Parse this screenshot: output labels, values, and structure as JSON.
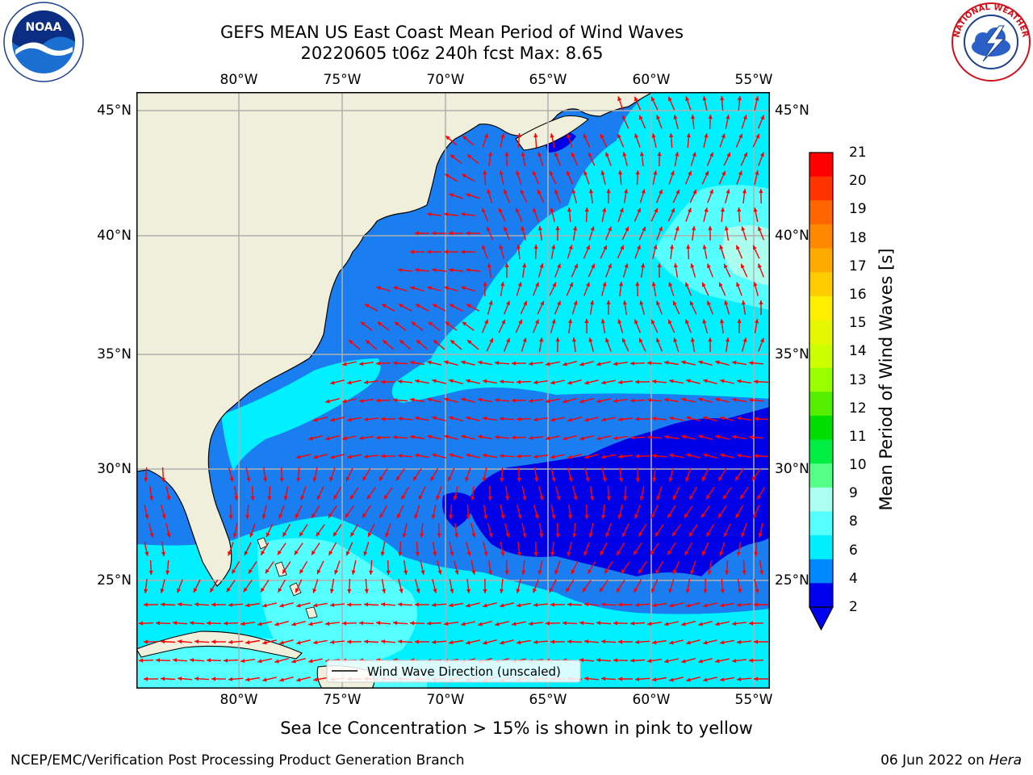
{
  "title_line1": "GEFS MEAN US East Coast Mean Period of Wind Waves",
  "title_line2": "20220605 t06z 240h fcst   Max: 8.65",
  "lon_labels": [
    "80°W",
    "75°W",
    "70°W",
    "65°W",
    "60°W",
    "55°W"
  ],
  "lat_labels": [
    "45°N",
    "40°N",
    "35°N",
    "30°N",
    "25°N"
  ],
  "legend_label": "Wind Wave Direction (unscaled)",
  "colorbar": {
    "label": "Mean Period of Wind Waves [s]",
    "ticks": [
      "21",
      "20",
      "19",
      "18",
      "17",
      "16",
      "15",
      "14",
      "13",
      "12",
      "11",
      "10",
      "9",
      "8",
      "6",
      "4",
      "2"
    ],
    "colors": [
      "#ff0000",
      "#ff3300",
      "#ff6600",
      "#ff8800",
      "#ffaa00",
      "#ffcc00",
      "#ffee00",
      "#e6f500",
      "#ccff00",
      "#99ff00",
      "#55ee00",
      "#00dd00",
      "#00ee44",
      "#55ff88",
      "#aaffee",
      "#55ffff",
      "#00eeff",
      "#0088ff",
      "#0000ee"
    ],
    "underflow_color": "#0000ee"
  },
  "map_colors": {
    "land": "#efefdb",
    "class_2_4": "#1a7ef0",
    "class_4_6": "#00f0ff",
    "class_6_8": "#55ffff",
    "class_8_9": "#aaffee",
    "under_2": "#0000e6",
    "arrow": "#ff0000",
    "grid": "#b0b0b0"
  },
  "sea_ice_note": "Sea Ice Concentration > 15% is shown in pink to yellow",
  "footer_left": "NCEP/EMC/Verification Post Processing Product Generation Branch",
  "footer_date": "06 Jun 2022 on",
  "footer_host": "Hera",
  "logo_left": "NOAA",
  "logo_right_text": "NATIONAL WEATHER SERVICE"
}
